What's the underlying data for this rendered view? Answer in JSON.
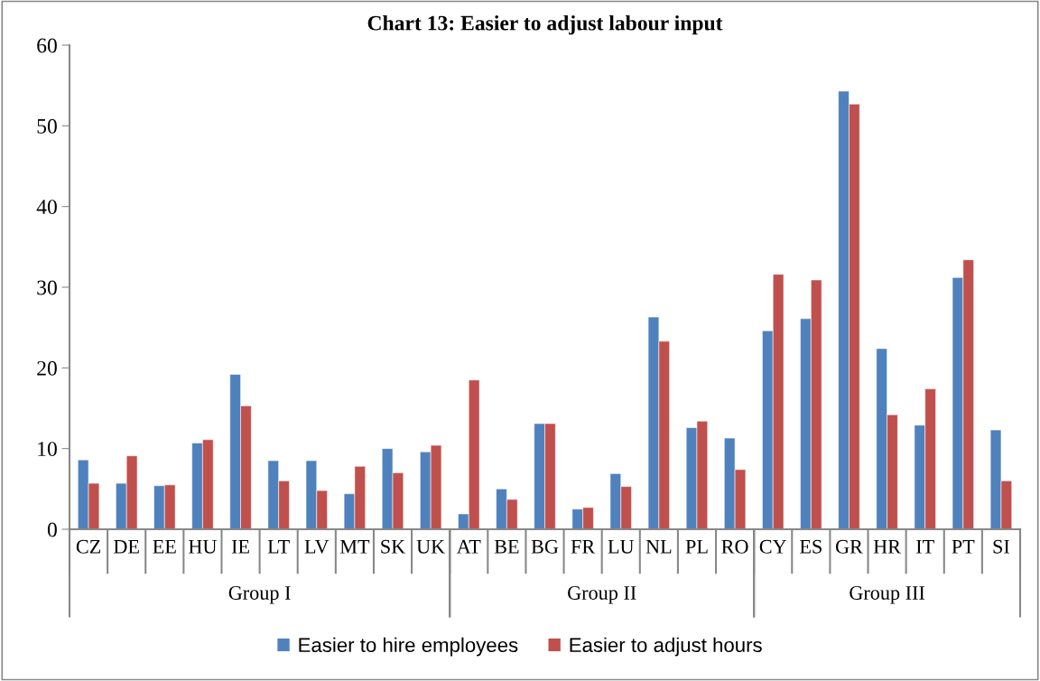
{
  "chart_data": {
    "type": "bar",
    "title": "Chart 13: Easier to adjust labour input",
    "categories": [
      "CZ",
      "DE",
      "EE",
      "HU",
      "IE",
      "LT",
      "LV",
      "MT",
      "SK",
      "UK",
      "AT",
      "BE",
      "BG",
      "FR",
      "LU",
      "NL",
      "PL",
      "RO",
      "CY",
      "ES",
      "GR",
      "HR",
      "IT",
      "PT",
      "SI"
    ],
    "series": [
      {
        "name": "Easier to hire employees",
        "color": "#4f81bd",
        "values": [
          8.6,
          5.7,
          5.4,
          10.7,
          19.2,
          8.5,
          8.5,
          4.4,
          10.0,
          9.6,
          1.9,
          5.0,
          13.1,
          2.5,
          6.9,
          26.3,
          12.6,
          11.3,
          24.6,
          26.1,
          54.3,
          22.4,
          12.9,
          31.2,
          12.3
        ]
      },
      {
        "name": "Easier to adjust hours",
        "color": "#c0504d",
        "values": [
          5.7,
          9.1,
          5.5,
          11.1,
          15.3,
          6.0,
          4.8,
          7.8,
          7.0,
          10.4,
          18.5,
          3.7,
          13.1,
          2.7,
          5.3,
          23.3,
          13.4,
          7.4,
          31.6,
          30.9,
          52.7,
          14.2,
          17.4,
          33.4,
          6.0
        ]
      }
    ],
    "ylim": [
      0,
      60
    ],
    "yticks": [
      0,
      10,
      20,
      30,
      40,
      50,
      60
    ],
    "grid": false,
    "legend": "bottom",
    "annotations": [
      "Group I",
      "Group II",
      "Group III"
    ]
  }
}
